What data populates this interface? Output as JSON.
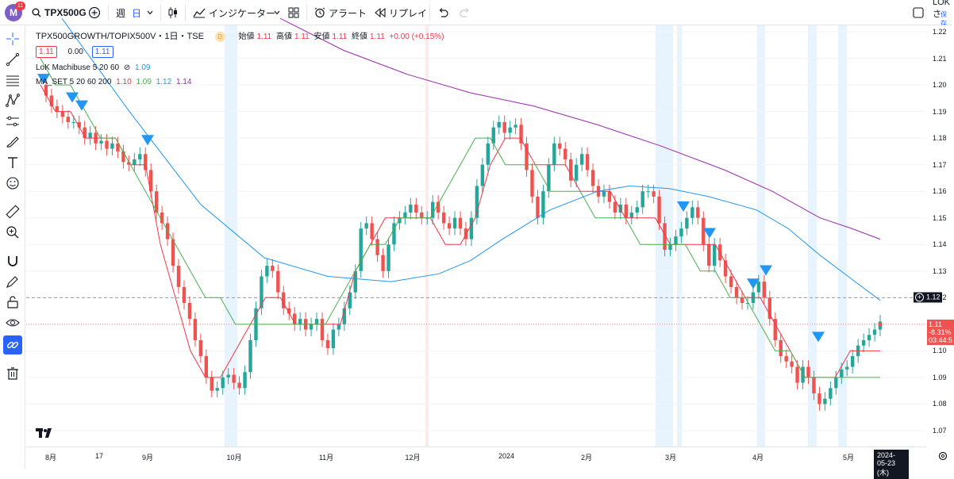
{
  "toolbar": {
    "avatar_letter": "M",
    "notif_count": "11",
    "symbol": "TPX500G",
    "interval_week": "週",
    "interval_day": "日",
    "indicators_label": "インジケーター",
    "alert_label": "アラート",
    "replay_label": "リプレイ",
    "account_label": "LOKさ",
    "account_sub": "保存"
  },
  "legend": {
    "title": "TPX500GROWTH/TOPIX500V・1日・TSE",
    "delay_badge": "D",
    "open_label": "始値",
    "open_value": "1.11",
    "high_label": "高値",
    "high_value": "1.11",
    "low_label": "安値",
    "low_value": "1.11",
    "close_label": "終値",
    "close_value": "1.11",
    "change": "+0.00 (+0.15%)",
    "bid": "1.11",
    "spread": "0.00",
    "ask": "1.11",
    "indicator1_name": "LoK Machibuse 5 20 60",
    "indicator1_value": "1.09",
    "indicator2_name": "MA_SET 5 20 60 200",
    "ma5": "1.10",
    "ma20": "1.09",
    "ma60": "1.12",
    "ma200": "1.14"
  },
  "colors": {
    "up": "#26a69a",
    "down": "#ef5350",
    "ma5": "#f23645",
    "ma20": "#4caf50",
    "ma60": "#2196f3",
    "ma200": "#9c27b0",
    "signal": "#2196f3"
  },
  "price_axis": {
    "ticks": [
      "1.22",
      "1.21",
      "1.20",
      "1.19",
      "1.18",
      "1.17",
      "1.16",
      "1.15",
      "1.14",
      "1.13",
      "1.12",
      "1.11",
      "1.10",
      "1.09",
      "1.08",
      "1.07"
    ],
    "crosshair_label": "1.12",
    "last_price": "1.11",
    "last_change": "-8.31%",
    "countdown": "03:44:5"
  },
  "time_axis": {
    "ticks": [
      "8月",
      "17",
      "9月",
      "10月",
      "11月",
      "12月",
      "2024",
      "2月",
      "3月",
      "4月",
      "5月"
    ],
    "cursor_date": "2024-05-23 (木)"
  },
  "chart_data": {
    "type": "candlestick",
    "symbol": "TPX500GROWTH/TOPIX500V",
    "interval": "1日",
    "exchange": "TSE",
    "ylim": [
      1.065,
      1.222
    ],
    "crosshair_price": 1.12,
    "last_price": 1.11,
    "x_start": "2023-08-01",
    "x_end": "2024-05-23",
    "series": [
      {
        "name": "MA 5",
        "values": [
          1.2,
          1.19,
          1.19,
          1.18,
          1.18,
          1.18,
          1.17,
          1.17,
          1.14,
          1.12,
          1.1,
          1.09,
          1.09,
          1.1,
          1.11,
          1.12,
          1.12,
          1.11,
          1.11,
          1.11,
          1.11,
          1.13,
          1.14,
          1.15,
          1.15,
          1.15,
          1.15,
          1.14,
          1.14,
          1.15,
          1.17,
          1.18,
          1.18,
          1.17,
          1.17,
          1.17,
          1.16,
          1.16,
          1.16,
          1.15,
          1.15,
          1.15,
          1.14,
          1.14,
          1.14,
          1.14,
          1.13,
          1.12,
          1.12,
          1.11,
          1.1,
          1.09,
          1.09,
          1.09,
          1.1,
          1.1,
          1.1
        ]
      },
      {
        "name": "MA 20",
        "values": [
          1.21,
          1.2,
          1.2,
          1.19,
          1.18,
          1.18,
          1.17,
          1.16,
          1.15,
          1.14,
          1.13,
          1.12,
          1.12,
          1.11,
          1.11,
          1.11,
          1.11,
          1.11,
          1.11,
          1.11,
          1.12,
          1.13,
          1.14,
          1.14,
          1.15,
          1.15,
          1.15,
          1.16,
          1.17,
          1.18,
          1.18,
          1.17,
          1.17,
          1.17,
          1.16,
          1.16,
          1.16,
          1.15,
          1.15,
          1.15,
          1.14,
          1.14,
          1.14,
          1.14,
          1.13,
          1.13,
          1.12,
          1.12,
          1.11,
          1.1,
          1.1,
          1.09,
          1.09,
          1.09,
          1.09,
          1.09,
          1.09
        ]
      }
    ],
    "signals": [
      "2023-08-07",
      "2023-08-10",
      "2023-08-14",
      "2023-09-04",
      "2024-02-29",
      "2024-03-11",
      "2024-03-28",
      "2024-04-02",
      "2024-04-25"
    ]
  }
}
